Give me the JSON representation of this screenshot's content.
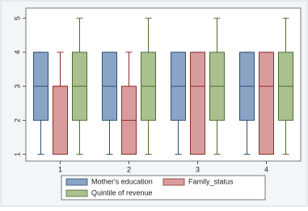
{
  "chart_data": {
    "type": "box",
    "categories": [
      "1",
      "2",
      "3",
      "4"
    ],
    "ylim": [
      0.8,
      5.3
    ],
    "yticks": [
      1,
      2,
      3,
      4,
      5
    ],
    "series": [
      {
        "name": "Mother's education",
        "color": "#8aa4c6",
        "edge": "#2f4f78",
        "min": [
          1,
          1,
          1,
          1
        ],
        "q1": [
          2,
          2,
          2,
          2
        ],
        "median": [
          3,
          3,
          3,
          3
        ],
        "q3": [
          4,
          4,
          4,
          4
        ],
        "max": [
          4,
          4,
          4,
          4
        ]
      },
      {
        "name": "Family_status",
        "color": "#d99c9c",
        "edge": "#8c2d2d",
        "min": [
          1,
          1,
          1,
          1
        ],
        "q1": [
          1,
          1,
          1,
          1
        ],
        "median": [
          3,
          2,
          3,
          3
        ],
        "q3": [
          3,
          3,
          4,
          4
        ],
        "max": [
          4,
          4,
          4,
          4
        ]
      },
      {
        "name": "Quintile of revenue",
        "color": "#abc08f",
        "edge": "#4e6b32",
        "min": [
          1,
          1,
          1,
          1
        ],
        "q1": [
          2,
          2,
          2,
          2
        ],
        "median": [
          3,
          3,
          3,
          3
        ],
        "q3": [
          4,
          4,
          4,
          4
        ],
        "max": [
          5,
          5,
          5,
          5
        ]
      }
    ]
  }
}
